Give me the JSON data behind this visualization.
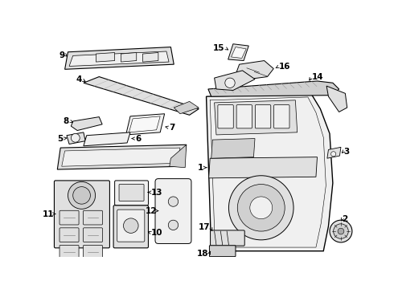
{
  "background_color": "#ffffff",
  "fig_width": 4.9,
  "fig_height": 3.6,
  "dpi": 100,
  "font_size": 7.5,
  "label_color": "#000000",
  "line_color": "#000000",
  "part_fill": "#f0f0f0",
  "part_fill2": "#e0e0e0",
  "part_fill3": "#d0d0d0"
}
